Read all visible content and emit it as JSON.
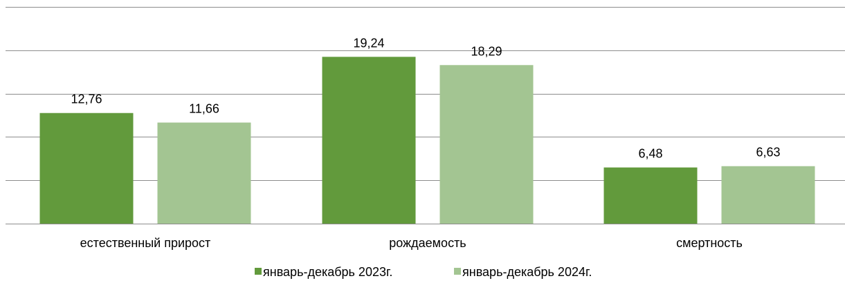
{
  "chart_data": {
    "type": "bar",
    "title": "",
    "xlabel": "",
    "ylabel": "",
    "categories": [
      "естественный прирост",
      "рождаемость",
      "смертность"
    ],
    "series": [
      {
        "name": "январь-декабрь 2023г.",
        "values": [
          12.76,
          19.24,
          6.48
        ],
        "labels": [
          "12,76",
          "19,24",
          "6,48"
        ],
        "color": "#629a3c"
      },
      {
        "name": "январь-декабрь 2024г.",
        "values": [
          11.66,
          18.29,
          6.63
        ],
        "labels": [
          "11,66",
          "18,29",
          "6,63"
        ],
        "color": "#a3c592"
      }
    ],
    "ylim": [
      0,
      25
    ],
    "grid": true,
    "legend_position": "bottom"
  }
}
